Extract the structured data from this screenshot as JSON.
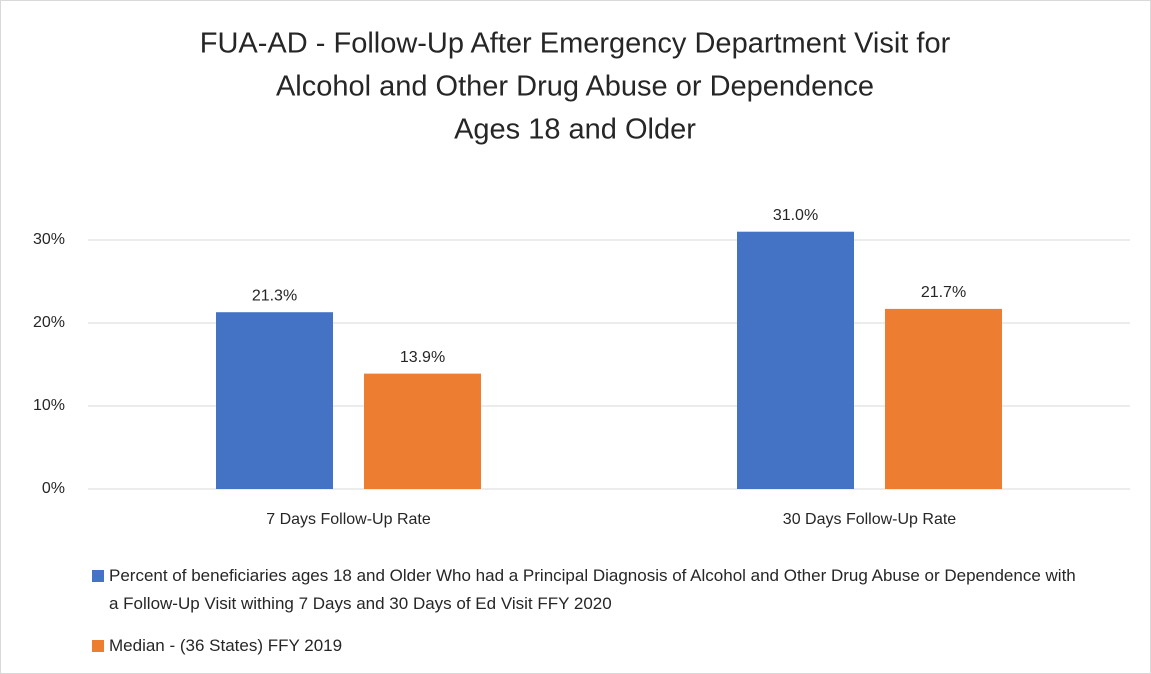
{
  "chart_data": {
    "type": "bar",
    "title": [
      "FUA-AD - Follow-Up After Emergency Department Visit for",
      "Alcohol and Other Drug Abuse or Dependence",
      "Ages 18 and Older"
    ],
    "categories": [
      "7 Days Follow-Up Rate",
      "30 Days Follow-Up Rate"
    ],
    "series": [
      {
        "name": "Percent of beneficiaries ages 18 and Older Who had a Principal Diagnosis of Alcohol and Other Drug Abuse or Dependence with a Follow-Up Visit withing 7 Days and 30 Days of Ed Visit FFY 2020",
        "color": "#4472c4",
        "values": [
          21.3,
          31.0
        ],
        "value_labels": [
          "21.3%",
          "31.0%"
        ]
      },
      {
        "name": "Median - (36 States) FFY 2019",
        "color": "#ed7d31",
        "values": [
          13.9,
          21.7
        ],
        "value_labels": [
          "13.9%",
          "21.7%"
        ]
      }
    ],
    "ylim": [
      0,
      35
    ],
    "yticks": [
      {
        "value": 0,
        "label": "0%"
      },
      {
        "value": 10,
        "label": "10%"
      },
      {
        "value": 20,
        "label": "20%"
      },
      {
        "value": 30,
        "label": "30%"
      }
    ],
    "grid": true
  }
}
